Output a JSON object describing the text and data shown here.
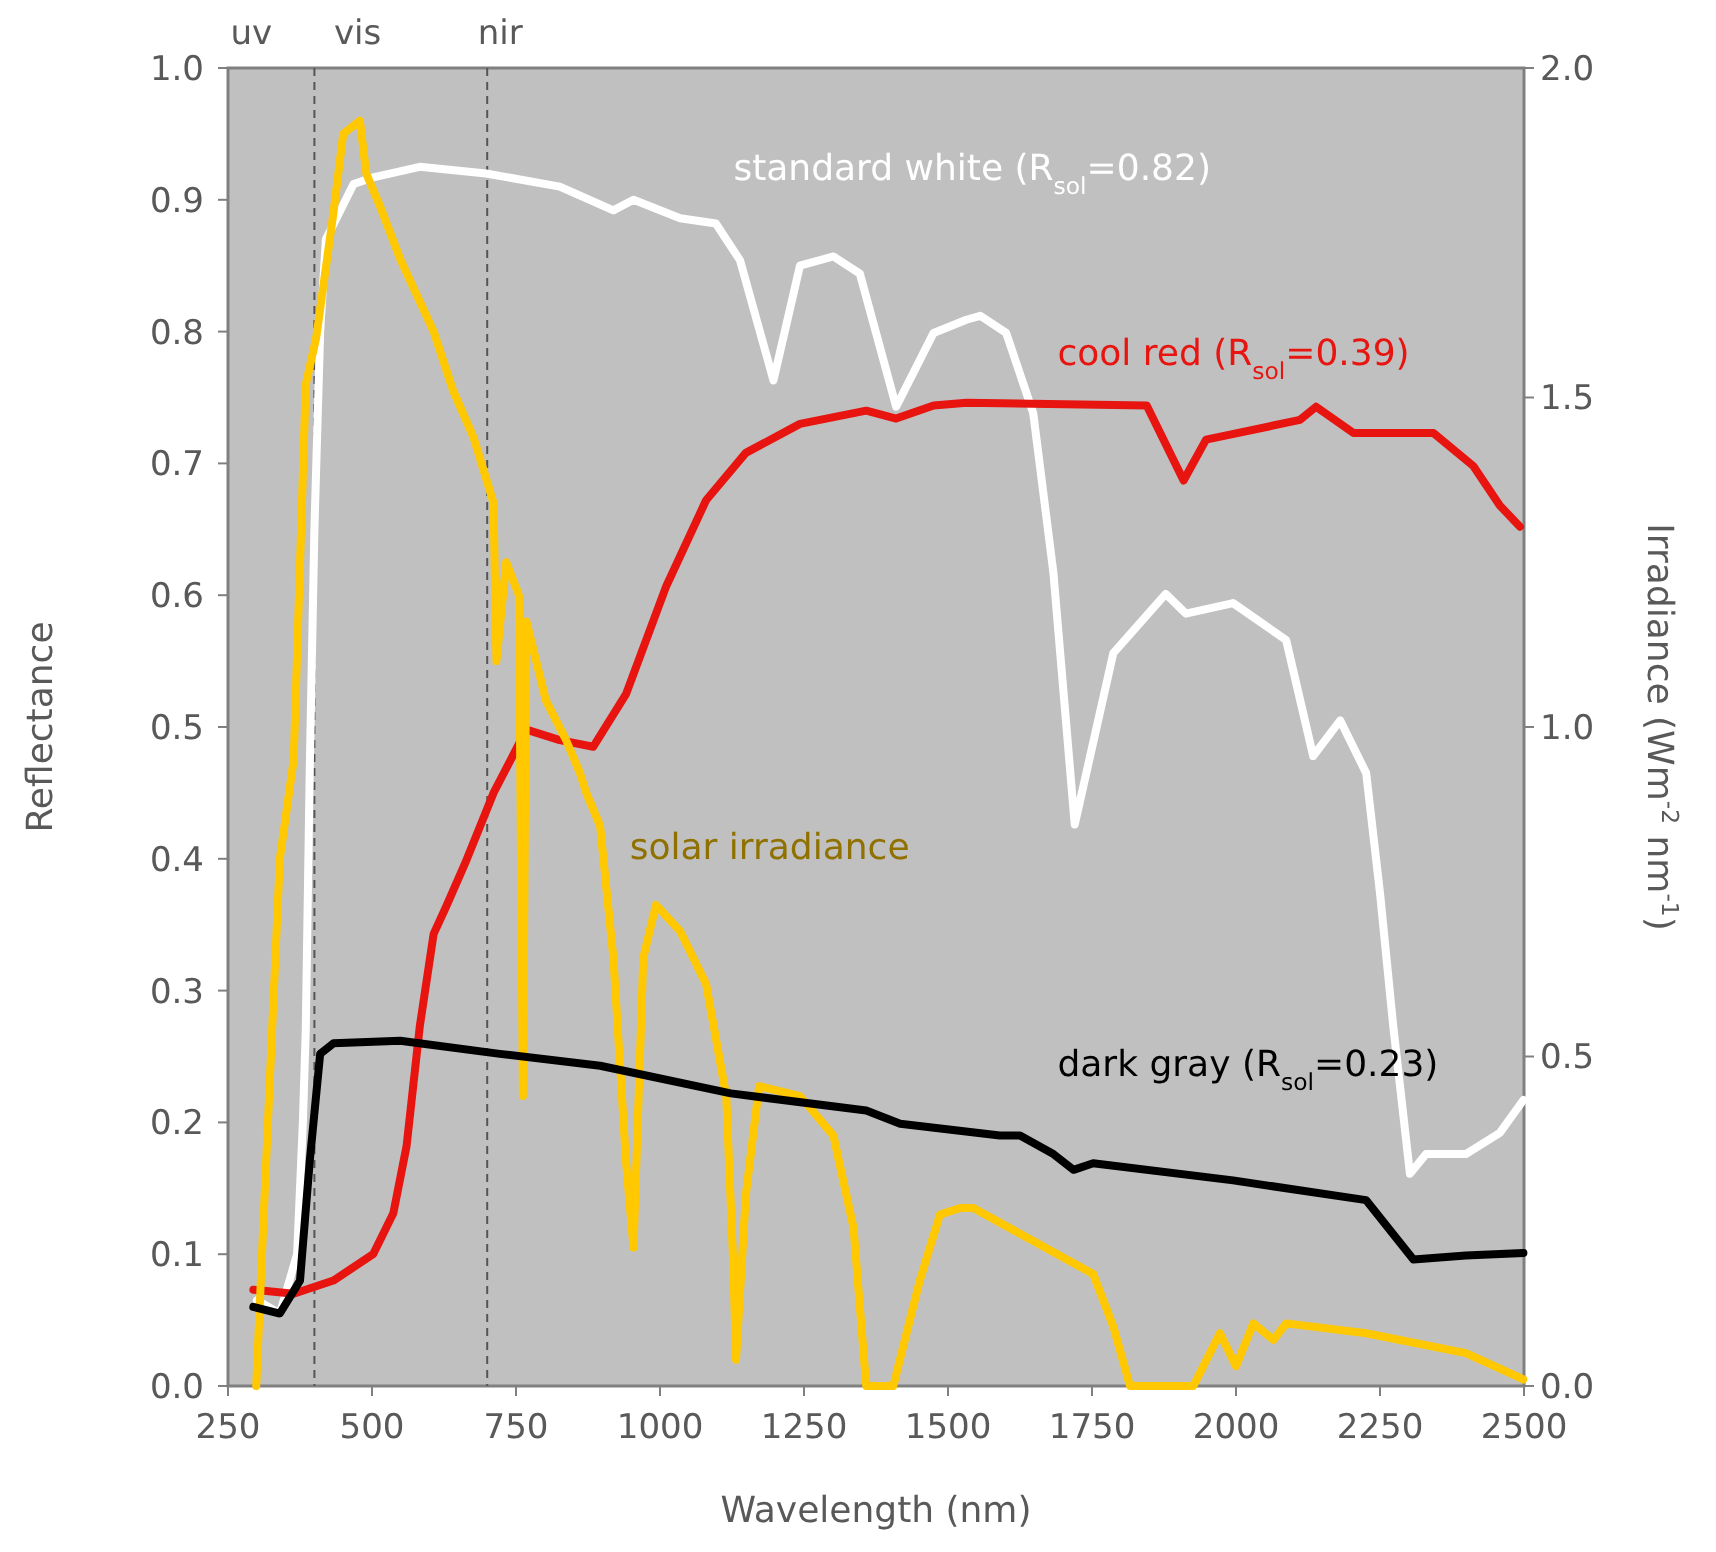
{
  "chart_data": {
    "type": "line",
    "xlabel": "Wavelength (nm)",
    "ylabel": "Reflectance",
    "y2label": "Irradiance (Wm$^{-2}$ nm$^{-1}$)",
    "xlim": [
      250,
      2500
    ],
    "xticks": [
      250,
      500,
      750,
      1000,
      1250,
      1500,
      1750,
      2000,
      2250,
      2500
    ],
    "ylim": [
      0,
      1
    ],
    "yticks": [
      {
        "value": 0,
        "label": "0.0"
      },
      0.1,
      0.2,
      0.3,
      0.4,
      0.5,
      0.6,
      0.7,
      0.8,
      0.9,
      {
        "value": 1,
        "label": "1.0"
      }
    ],
    "y2lim": [
      0,
      2
    ],
    "y2ticks": [
      {
        "value": 0,
        "label": "0.0"
      },
      0.5,
      {
        "value": 1,
        "label": "1.0"
      },
      1.5,
      {
        "value": 2,
        "label": "2.0"
      }
    ],
    "grid": false,
    "line_style": "solid",
    "marker": "none",
    "ref_lines": [
      {
        "axis": "x",
        "value": 400,
        "color": "#555555",
        "line_style": "dashed"
      },
      {
        "axis": "x",
        "value": 700,
        "color": "#555555",
        "line_style": "dashed"
      }
    ],
    "annotations": [
      "uv",
      "vis",
      "nir"
    ],
    "series": [
      {
        "name": "standard white (R$_{sol}$=0.82)",
        "color": "#ffffff",
        "x": [
          300,
          340,
          370,
          380,
          385,
          392,
          400,
          410,
          420,
          468,
          502,
          583,
          698,
          826,
          919,
          954,
          1035,
          1097,
          1139,
          1197,
          1243,
          1301,
          1347,
          1410,
          1475,
          1532,
          1556,
          1601,
          1648,
          1683,
          1720,
          1787,
          1878,
          1913,
          1995,
          2087,
          2134,
          2181,
          2226,
          2250,
          2273,
          2302,
          2330,
          2399,
          2458,
          2499
        ],
        "values": [
          0.065,
          0.055,
          0.1,
          0.2,
          0.27,
          0.47,
          0.65,
          0.8,
          0.87,
          0.912,
          0.917,
          0.925,
          0.92,
          0.91,
          0.892,
          0.9,
          0.886,
          0.882,
          0.854,
          0.763,
          0.85,
          0.857,
          0.844,
          0.743,
          0.799,
          0.809,
          0.812,
          0.799,
          0.738,
          0.617,
          0.426,
          0.556,
          0.601,
          0.586,
          0.594,
          0.566,
          0.478,
          0.505,
          0.465,
          0.374,
          0.273,
          0.161,
          0.176,
          0.176,
          0.192,
          0.217
        ]
      },
      {
        "name": "cool red (R$_{sol}$=0.39)",
        "color": "#e8140f",
        "x": [
          294,
          364,
          433,
          502,
          537,
          560,
          583,
          607,
          629,
          664,
          711,
          768,
          826,
          884,
          941,
          1011,
          1080,
          1149,
          1243,
          1358,
          1410,
          1475,
          1532,
          1845,
          1909,
          1948,
          2111,
          2139,
          2204,
          2343,
          2412,
          2458,
          2493
        ],
        "values": [
          0.073,
          0.07,
          0.08,
          0.1,
          0.131,
          0.182,
          0.273,
          0.343,
          0.364,
          0.399,
          0.45,
          0.498,
          0.49,
          0.485,
          0.525,
          0.607,
          0.672,
          0.708,
          0.73,
          0.74,
          0.734,
          0.744,
          0.746,
          0.744,
          0.687,
          0.718,
          0.733,
          0.743,
          0.723,
          0.723,
          0.698,
          0.668,
          0.652
        ]
      },
      {
        "name": "solar irradiance",
        "color": "#ffc800",
        "axis": "y2",
        "x": [
          299,
          311,
          340,
          364,
          385,
          403,
          433,
          450,
          479,
          490,
          514,
          549,
          607,
          641,
          676,
          711,
          716,
          733,
          755,
          762,
          768,
          802,
          837,
          861,
          872,
          896,
          919,
          941,
          954,
          971,
          993,
          1035,
          1080,
          1115,
          1127,
          1132,
          1149,
          1172,
          1243,
          1301,
          1336,
          1358,
          1405,
          1451,
          1486,
          1521,
          1544,
          1648,
          1752,
          1787,
          1816,
          1926,
          1972,
          2000,
          2030,
          2065,
          2087,
          2226,
          2399,
          2499
        ],
        "values": [
          0,
          0.24,
          0.8,
          0.95,
          1.52,
          1.59,
          1.78,
          1.9,
          1.92,
          1.84,
          1.79,
          1.71,
          1.6,
          1.51,
          1.44,
          1.34,
          1.1,
          1.25,
          1.2,
          0.44,
          1.16,
          1.04,
          0.98,
          0.93,
          0.9,
          0.85,
          0.65,
          0.34,
          0.21,
          0.65,
          0.73,
          0.69,
          0.61,
          0.44,
          0.19,
          0.04,
          0.29,
          0.455,
          0.44,
          0.38,
          0.24,
          0,
          0,
          0.16,
          0.26,
          0.27,
          0.27,
          0.22,
          0.17,
          0.09,
          0,
          0,
          0.08,
          0.03,
          0.095,
          0.07,
          0.095,
          0.08,
          0.05,
          0.01
        ]
      },
      {
        "name": "dark gray (R$_{sol}$=0.23)",
        "color": "#000000",
        "x": [
          294,
          340,
          375,
          392,
          410,
          433,
          549,
          722,
          896,
          1123,
          1358,
          1417,
          1590,
          1625,
          1683,
          1718,
          1752,
          1995,
          2226,
          2308,
          2399,
          2499
        ],
        "values": [
          0.06,
          0.055,
          0.08,
          0.171,
          0.252,
          0.26,
          0.262,
          0.252,
          0.243,
          0.222,
          0.209,
          0.199,
          0.19,
          0.19,
          0.176,
          0.164,
          0.169,
          0.156,
          0.141,
          0.096,
          0.099,
          0.101
        ]
      }
    ]
  }
}
